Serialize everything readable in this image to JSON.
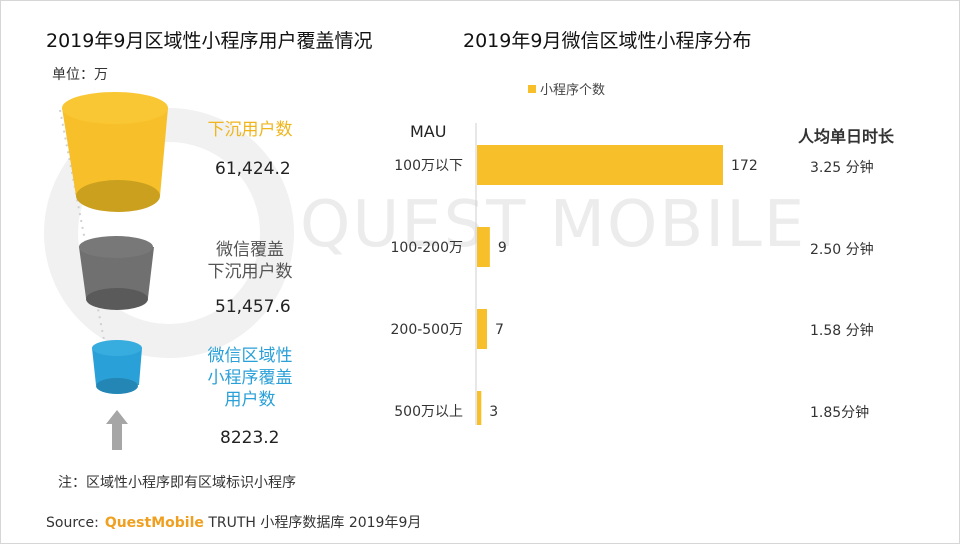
{
  "left": {
    "title": "2019年9月区域性小程序用户覆盖情况",
    "unit": "单位：万",
    "stats": [
      {
        "label_lines": [
          "下沉用户数"
        ],
        "value": "61,424.2",
        "color": "#f7c02a"
      },
      {
        "label_lines": [
          "微信覆盖",
          "下沉用户数"
        ],
        "value": "51,457.6",
        "color": "#707070"
      },
      {
        "label_lines": [
          "微信区域性",
          "小程序覆盖",
          "用户数"
        ],
        "value": "8223.2",
        "color": "#2aa0d8"
      }
    ],
    "note": "注：区域性小程序即有区域标识小程序"
  },
  "right": {
    "title": "2019年9月微信区域性小程序分布",
    "legend": "小程序个数",
    "mau_header": "MAU",
    "time_header": "人均单日时长",
    "time_values": [
      "3.25 分钟",
      "2.50 分钟",
      "1.58 分钟",
      "1.85分钟"
    ]
  },
  "chart_data": {
    "type": "bar",
    "orientation": "horizontal",
    "categories": [
      "100万以下",
      "100-200万",
      "200-500万",
      "500万以上"
    ],
    "series": [
      {
        "name": "小程序个数",
        "values": [
          172,
          9,
          7,
          3
        ],
        "color": "#f7c02a"
      }
    ],
    "xlim": [
      0,
      172
    ]
  },
  "watermark": "QUEST MOBILE",
  "source": {
    "prefix": "Source:",
    "brand": "QuestMobile",
    "text": "TRUTH 小程序数据库 2019年9月"
  },
  "colors": {
    "accent_yellow": "#f7c02a",
    "gray": "#707070",
    "blue": "#2aa0d8",
    "arrow": "#a6a6a6"
  }
}
